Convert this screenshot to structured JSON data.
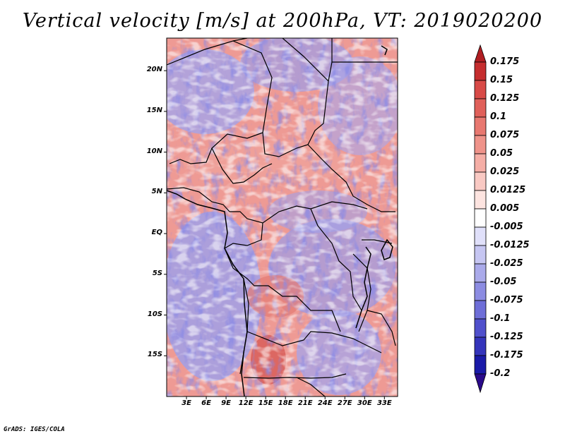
{
  "title": "Vertical velocity [m/s] at 200hPa, VT: 2019020200",
  "credit": "GrADS: IGES/COLA",
  "map": {
    "lon_range": [
      0,
      35
    ],
    "lat_range": [
      -20,
      24
    ],
    "lat_labels": [
      "20N",
      "15N",
      "10N",
      "5N",
      "EQ",
      "5S",
      "10S",
      "15S"
    ],
    "lat_values": [
      20,
      15,
      10,
      5,
      0,
      -5,
      -10,
      -15
    ],
    "lon_labels": [
      "3E",
      "6E",
      "9E",
      "12E",
      "15E",
      "18E",
      "21E",
      "24E",
      "27E",
      "30E",
      "33E"
    ],
    "lon_values": [
      3,
      6,
      9,
      12,
      15,
      18,
      21,
      24,
      27,
      30,
      33
    ]
  },
  "colorbar": {
    "labels": [
      "0.175",
      "0.15",
      "0.125",
      "0.1",
      "0.075",
      "0.05",
      "0.025",
      "0.0125",
      "0.005",
      "-0.005",
      "-0.0125",
      "-0.025",
      "-0.05",
      "-0.075",
      "-0.1",
      "-0.125",
      "-0.175",
      "-0.2"
    ],
    "colors": [
      "#b01e22",
      "#c52d2e",
      "#d84a47",
      "#e0605a",
      "#e87870",
      "#ef938a",
      "#f5aea6",
      "#f9c9c3",
      "#fde4e0",
      "#ffffff",
      "#e0e0fa",
      "#c6c6f2",
      "#aaaaea",
      "#8c8ce2",
      "#6e6ed8",
      "#5050cc",
      "#3434bb",
      "#1a1aa8",
      "#2a0a8a"
    ]
  }
}
